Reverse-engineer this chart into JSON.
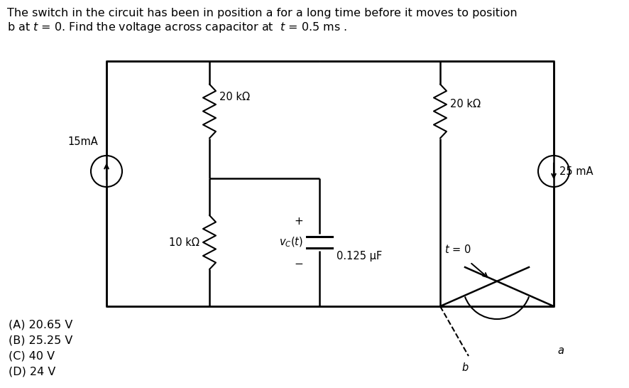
{
  "title_line1": "The switch in the circuit has been in position a for a long time before it moves to position",
  "title_line2": "b at $t$ = 0. Find the voltage across capacitor at  $t$ = 0.5 ms .",
  "bg_color": "#ffffff",
  "label_15mA": "15mA",
  "label_25mA": "25 mA",
  "label_20k_top": "20 kΩ",
  "label_20k_right": "20 kΩ",
  "label_10k": "10 kΩ",
  "label_cap": "0.125 μF",
  "label_t0": "$t$ = 0",
  "label_a": "$a$",
  "label_b": "$b$",
  "label_plus": "+",
  "label_minus": "−",
  "options": [
    "(A) 20.65 V",
    "(B) 25.25 V",
    "(C) 40 V",
    "(D) 24 V"
  ],
  "text_color": "#000000"
}
